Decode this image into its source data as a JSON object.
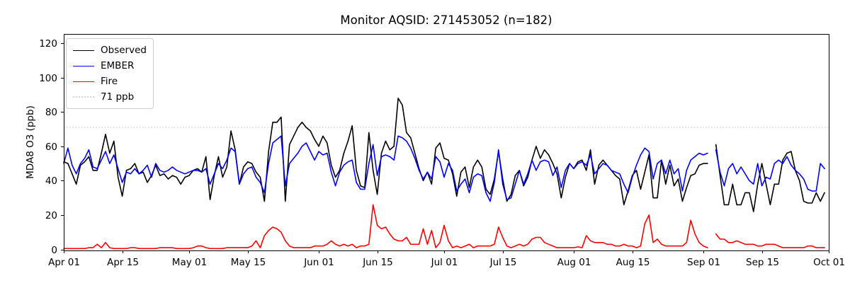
{
  "chart_data": {
    "type": "line",
    "title": "Monitor AQSID: 271453052 (n=182)",
    "xlabel": "",
    "ylabel": "MDA8 O3 (ppb)",
    "ylim": [
      -0.6,
      125.4
    ],
    "yticks": [
      0,
      20,
      40,
      60,
      80,
      100,
      120
    ],
    "x_span_days": 183,
    "x_start_label": "Apr 01",
    "xticks": [
      {
        "label": "Apr 01",
        "day": 0
      },
      {
        "label": "Apr 15",
        "day": 14
      },
      {
        "label": "May 01",
        "day": 30
      },
      {
        "label": "May 15",
        "day": 44
      },
      {
        "label": "Jun 01",
        "day": 61
      },
      {
        "label": "Jun 15",
        "day": 75
      },
      {
        "label": "Jul 01",
        "day": 91
      },
      {
        "label": "Jul 15",
        "day": 105
      },
      {
        "label": "Aug 01",
        "day": 122
      },
      {
        "label": "Aug 15",
        "day": 136
      },
      {
        "label": "Sep 01",
        "day": 153
      },
      {
        "label": "Sep 15",
        "day": 167
      },
      {
        "label": "Oct 01",
        "day": 183
      }
    ],
    "grid": false,
    "legend_position": "upper left",
    "threshold": {
      "label": "71 ppb",
      "value": 71,
      "color": "#d3d3d3",
      "style": "dotted"
    },
    "frame_color": "#000000",
    "missing_day_index": 155,
    "series": [
      {
        "name": "Observed",
        "color": "#000000",
        "values": [
          51,
          50,
          44,
          38,
          49,
          51,
          54,
          46,
          46,
          56,
          67,
          56,
          63,
          42,
          31,
          46,
          47,
          50,
          44,
          45,
          39,
          43,
          49,
          43,
          44,
          41,
          43,
          42,
          38,
          42,
          43,
          46,
          47,
          45,
          54,
          29,
          43,
          54,
          42,
          48,
          69,
          58,
          38,
          48,
          51,
          50,
          45,
          42,
          28,
          57,
          74,
          74,
          77,
          28,
          61,
          66,
          71,
          74,
          71,
          69,
          64,
          60,
          66,
          62,
          49,
          42,
          46,
          56,
          63,
          72,
          46,
          37,
          36,
          68,
          46,
          32,
          56,
          63,
          58,
          60,
          88,
          84,
          68,
          65,
          56,
          47,
          40,
          45,
          38,
          59,
          62,
          53,
          52,
          44,
          31,
          45,
          48,
          36,
          48,
          52,
          48,
          35,
          32,
          41,
          57,
          41,
          28,
          32,
          43,
          46,
          37,
          42,
          52,
          60,
          53,
          58,
          55,
          50,
          44,
          30,
          42,
          50,
          47,
          51,
          52,
          46,
          58,
          38,
          49,
          52,
          49,
          46,
          43,
          41,
          26,
          34,
          43,
          46,
          35,
          45,
          55,
          30,
          30,
          52,
          38,
          49,
          37,
          41,
          28,
          36,
          43,
          44,
          49,
          50,
          50,
          null,
          61,
          43,
          26,
          26,
          38,
          26,
          26,
          33,
          33,
          22,
          38,
          50,
          38,
          26,
          38,
          38,
          52,
          56,
          57,
          46,
          40,
          28,
          27,
          27,
          33,
          28,
          33
        ]
      },
      {
        "name": "EMBER",
        "color": "#0000ff",
        "values": [
          50,
          59,
          49,
          44,
          50,
          53,
          58,
          48,
          47,
          52,
          57,
          50,
          55,
          47,
          39,
          45,
          44,
          47,
          44,
          46,
          49,
          42,
          50,
          46,
          45,
          46,
          48,
          46,
          45,
          44,
          45,
          46,
          46,
          45,
          47,
          38,
          44,
          50,
          47,
          52,
          59,
          57,
          38,
          44,
          47,
          48,
          42,
          39,
          33,
          50,
          62,
          64,
          66,
          37,
          50,
          53,
          56,
          60,
          62,
          57,
          52,
          57,
          55,
          56,
          45,
          37,
          45,
          49,
          51,
          52,
          39,
          35,
          35,
          50,
          61,
          43,
          54,
          55,
          54,
          52,
          66,
          65,
          63,
          59,
          53,
          46,
          41,
          45,
          41,
          54,
          51,
          42,
          50,
          46,
          34,
          38,
          41,
          33,
          42,
          44,
          43,
          33,
          28,
          39,
          58,
          38,
          29,
          30,
          38,
          46,
          38,
          44,
          52,
          46,
          51,
          52,
          51,
          43,
          48,
          36,
          46,
          50,
          47,
          50,
          51,
          49,
          55,
          44,
          47,
          50,
          49,
          46,
          45,
          44,
          38,
          33,
          42,
          49,
          55,
          59,
          57,
          41,
          50,
          52,
          44,
          52,
          44,
          47,
          34,
          46,
          52,
          54,
          56,
          55,
          56,
          null,
          58,
          45,
          37,
          47,
          50,
          44,
          48,
          44,
          40,
          38,
          50,
          37,
          42,
          41,
          50,
          52,
          50,
          54,
          49,
          46,
          44,
          41,
          35,
          34,
          34,
          50,
          47
        ]
      },
      {
        "name": "Fire",
        "color": "#ff0000",
        "values": [
          0.5,
          0.5,
          0.5,
          0.5,
          0.5,
          0.5,
          1,
          1,
          3,
          1,
          4,
          1,
          0.5,
          0.5,
          0.5,
          0.5,
          1,
          1,
          0.5,
          0.5,
          0.5,
          0.5,
          0.5,
          1,
          1,
          1,
          1,
          0.5,
          0.5,
          0.5,
          0.5,
          1,
          2,
          2,
          1,
          0.5,
          0.5,
          0.5,
          0.5,
          1,
          1,
          1,
          1,
          1,
          1,
          2,
          5,
          1,
          8,
          11,
          13,
          12,
          10,
          5,
          2,
          1,
          1,
          1,
          1,
          1,
          2,
          2,
          2,
          3,
          5,
          3,
          2,
          3,
          2,
          3,
          1,
          2,
          2,
          3,
          26,
          14,
          12,
          13,
          9,
          6,
          5,
          5,
          7,
          3,
          3,
          3,
          12,
          3,
          11,
          1,
          4,
          14,
          5,
          1,
          2,
          1,
          2,
          3,
          1,
          2,
          2,
          2,
          2,
          3,
          13,
          7,
          2,
          1,
          2,
          3,
          2,
          3,
          6,
          7,
          7,
          4,
          3,
          2,
          1,
          1,
          1,
          1,
          1,
          1.5,
          1,
          8,
          5,
          4,
          4,
          4,
          3,
          3,
          2,
          2,
          3,
          2,
          2,
          1,
          2,
          15,
          20,
          4,
          6,
          3,
          2,
          2,
          2,
          2,
          2,
          4,
          17,
          9,
          4,
          2,
          1,
          null,
          9,
          6,
          6,
          4,
          4,
          5,
          4,
          3,
          3,
          3,
          2,
          2,
          3,
          3,
          3,
          2,
          1,
          1,
          1,
          1,
          1,
          1,
          2,
          2,
          1,
          1,
          1
        ]
      }
    ]
  }
}
